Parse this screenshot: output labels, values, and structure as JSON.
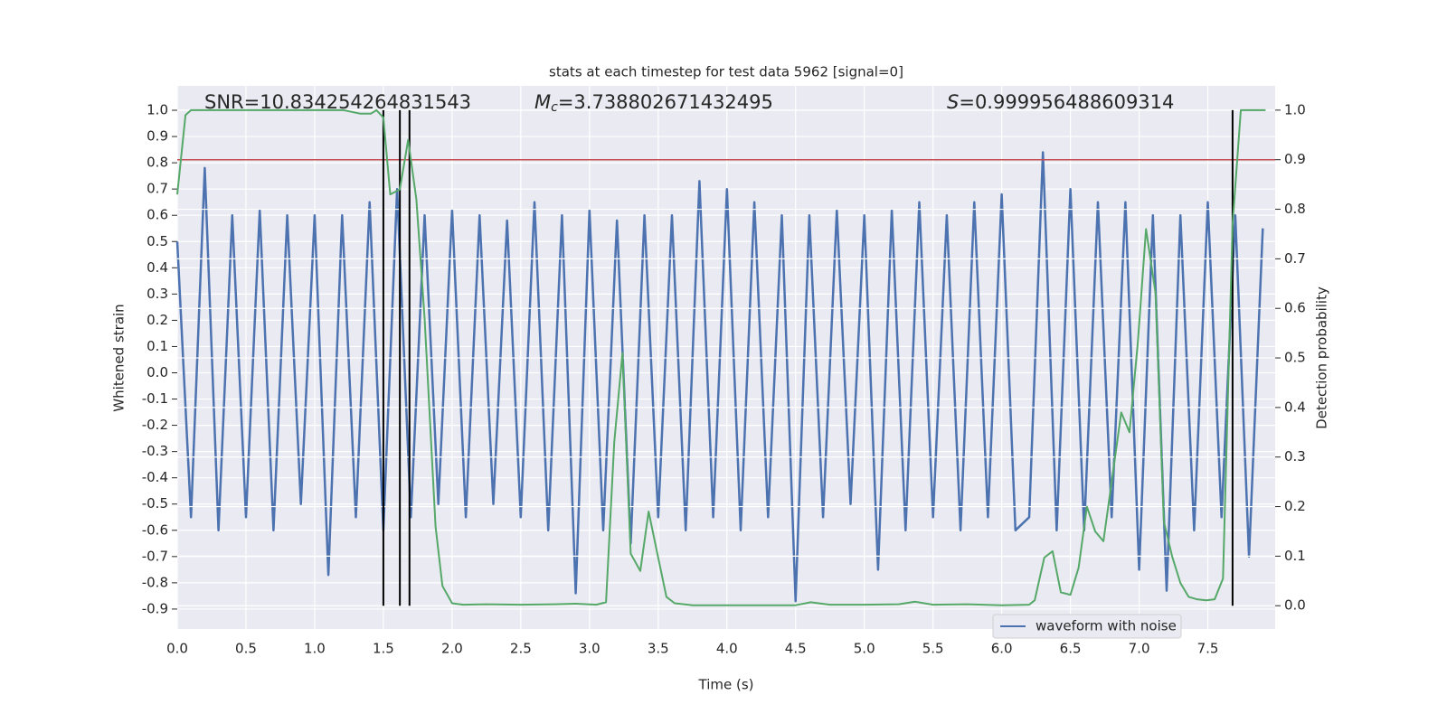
{
  "chart_data": {
    "type": "line",
    "title": "stats at each timestep for test data 5962 [signal=0]",
    "xlabel": "Time (s)",
    "ylabel": "Whitened strain",
    "y2label": "Detection probability",
    "annotations": [
      "SNR=10.834254264831543",
      "Mc=3.738802671432495",
      "S=0.999956488609314"
    ],
    "xlim": [
      0,
      7.99
    ],
    "ylim": [
      -0.976,
      1.093
    ],
    "y2lim": [
      -0.047,
      1.049
    ],
    "xticks": [
      {
        "value": 0,
        "label": "0.0"
      },
      0.5,
      {
        "value": 1,
        "label": "1.0"
      },
      1.5,
      {
        "value": 2,
        "label": "2.0"
      },
      2.5,
      {
        "value": 3,
        "label": "3.0"
      },
      3.5,
      {
        "value": 4,
        "label": "4.0"
      },
      4.5,
      {
        "value": 5,
        "label": "5.0"
      },
      5.5,
      {
        "value": 6,
        "label": "6.0"
      },
      6.5,
      {
        "value": 7,
        "label": "7.0"
      },
      7.5
    ],
    "yticks": [
      -0.9,
      -0.8,
      -0.7,
      -0.6,
      -0.5,
      -0.4,
      -0.3,
      -0.2,
      -0.1,
      {
        "value": 0,
        "label": "0.0"
      },
      0.1,
      0.2,
      0.3,
      0.4,
      0.5,
      0.6,
      0.7,
      0.8,
      0.9,
      {
        "value": 1,
        "label": "1.0"
      }
    ],
    "y2ticks": [
      {
        "value": 0,
        "label": "0.0"
      },
      0.1,
      0.2,
      0.3,
      0.4,
      0.5,
      0.6,
      0.7,
      0.8,
      0.9,
      {
        "value": 1,
        "label": "1.0"
      }
    ],
    "grid": true,
    "legend": "lower right",
    "series": [
      {
        "name": "waveform with noise",
        "color": "#4c72b0",
        "x": [
          0.0,
          0.1,
          0.2,
          0.3,
          0.4,
          0.5,
          0.6,
          0.7,
          0.8,
          0.9,
          1.0,
          1.1,
          1.2,
          1.3,
          1.4,
          1.5,
          1.6,
          1.7,
          1.8,
          1.9,
          2.0,
          2.1,
          2.2,
          2.3,
          2.4,
          2.5,
          2.6,
          2.7,
          2.8,
          2.9,
          3.0,
          3.1,
          3.2,
          3.3,
          3.4,
          3.5,
          3.6,
          3.7,
          3.8,
          3.9,
          4.0,
          4.1,
          4.2,
          4.3,
          4.4,
          4.5,
          4.6,
          4.7,
          4.8,
          4.9,
          5.0,
          5.1,
          5.2,
          5.3,
          5.4,
          5.5,
          5.6,
          5.7,
          5.8,
          5.9,
          6.0,
          6.1,
          6.2,
          6.3,
          6.4,
          6.5,
          6.6,
          6.7,
          6.8,
          6.9,
          7.0,
          7.1,
          7.2,
          7.3,
          7.4,
          7.5,
          7.6,
          7.7,
          7.8,
          7.9
        ],
        "values": [
          0.5,
          -0.55,
          0.78,
          -0.6,
          0.6,
          -0.55,
          0.62,
          -0.6,
          0.6,
          -0.5,
          0.6,
          -0.77,
          0.6,
          -0.55,
          0.65,
          -0.6,
          0.7,
          -0.55,
          0.6,
          -0.5,
          0.62,
          -0.55,
          0.6,
          -0.5,
          0.58,
          -0.55,
          0.65,
          -0.6,
          0.6,
          -0.84,
          0.62,
          -0.6,
          0.58,
          -0.65,
          0.6,
          -0.55,
          0.6,
          -0.6,
          0.73,
          -0.55,
          0.7,
          -0.6,
          0.65,
          -0.55,
          0.6,
          -0.87,
          0.6,
          -0.55,
          0.62,
          -0.5,
          0.6,
          -0.75,
          0.62,
          -0.6,
          0.65,
          -0.55,
          0.6,
          -0.6,
          0.65,
          -0.55,
          0.68,
          -0.6,
          -0.55,
          0.84,
          -0.6,
          0.7,
          -0.6,
          0.65,
          -0.55,
          0.65,
          -0.75,
          0.6,
          -0.83,
          0.6,
          -0.6,
          0.65,
          -0.55,
          0.6,
          -0.7,
          0.55
        ]
      },
      {
        "color": "#55a868",
        "axis": "y2",
        "x": [
          0,
          0.06,
          0.1,
          1.21,
          1.33,
          1.41,
          1.45,
          1.5,
          1.55,
          1.62,
          1.68,
          1.74,
          1.8,
          1.88,
          1.93,
          2.0,
          2.08,
          2.25,
          2.5,
          2.75,
          2.9,
          3.05,
          3.12,
          3.18,
          3.24,
          3.3,
          3.37,
          3.43,
          3.49,
          3.56,
          3.62,
          3.75,
          4.0,
          4.25,
          4.5,
          4.61,
          4.75,
          5.0,
          5.25,
          5.37,
          5.5,
          5.75,
          6.0,
          6.2,
          6.24,
          6.31,
          6.37,
          6.43,
          6.5,
          6.56,
          6.62,
          6.68,
          6.74,
          6.81,
          6.87,
          6.93,
          6.99,
          7.05,
          7.12,
          7.18,
          7.24,
          7.3,
          7.36,
          7.42,
          7.49,
          7.55,
          7.61,
          7.68,
          7.74,
          7.92
        ],
        "values": [
          0.83,
          0.99,
          1.0,
          1.0,
          0.993,
          0.993,
          1.0,
          0.985,
          0.83,
          0.84,
          0.94,
          0.82,
          0.58,
          0.16,
          0.04,
          0.005,
          0.002,
          0.003,
          0.002,
          0.003,
          0.004,
          0.002,
          0.007,
          0.33,
          0.51,
          0.105,
          0.07,
          0.19,
          0.11,
          0.018,
          0.005,
          0.001,
          0.001,
          0.001,
          0.001,
          0.007,
          0.002,
          0.002,
          0.003,
          0.008,
          0.002,
          0.003,
          0.001,
          0.002,
          0.011,
          0.097,
          0.11,
          0.027,
          0.022,
          0.077,
          0.2,
          0.15,
          0.13,
          0.27,
          0.39,
          0.35,
          0.53,
          0.76,
          0.63,
          0.17,
          0.1,
          0.046,
          0.018,
          0.013,
          0.011,
          0.013,
          0.055,
          0.77,
          1.0,
          1.0
        ]
      }
    ],
    "hline": {
      "axis": "y2",
      "value": 0.9,
      "color": "#c44e52"
    },
    "vlines": {
      "x": [
        1.5,
        1.62,
        1.69,
        7.68
      ],
      "y2range": [
        0,
        1
      ],
      "color": "#000000"
    }
  }
}
